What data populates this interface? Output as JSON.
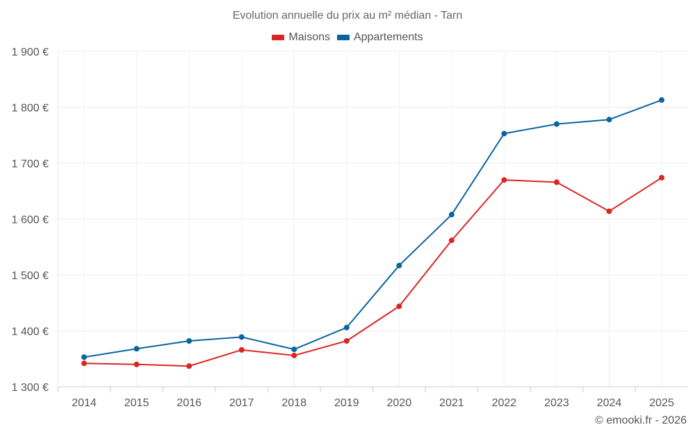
{
  "chart_data": {
    "type": "line",
    "title": "Evolution annuelle du prix au m² médian - Tarn",
    "xlabel": "",
    "ylabel": "",
    "categories": [
      "2014",
      "2015",
      "2016",
      "2017",
      "2018",
      "2019",
      "2020",
      "2021",
      "2022",
      "2023",
      "2024",
      "2025"
    ],
    "ylim": [
      1300,
      1900
    ],
    "yticks": [
      1300,
      1400,
      1500,
      1600,
      1700,
      1800,
      1900
    ],
    "ytick_labels": [
      "1 300 €",
      "1 400 €",
      "1 500 €",
      "1 600 €",
      "1 700 €",
      "1 800 €",
      "1 900 €"
    ],
    "grid": true,
    "legend_position": "top-center",
    "series": [
      {
        "name": "Maisons",
        "color": "#dd2424",
        "values": [
          1342,
          1340,
          1337,
          1366,
          1356,
          1382,
          1444,
          1562,
          1670,
          1666,
          1614,
          1674
        ]
      },
      {
        "name": "Appartements",
        "color": "#0a64a0",
        "values": [
          1353,
          1368,
          1382,
          1389,
          1367,
          1406,
          1517,
          1608,
          1753,
          1770,
          1778,
          1813
        ]
      }
    ]
  },
  "credit": "© emooki.fr - 2026"
}
